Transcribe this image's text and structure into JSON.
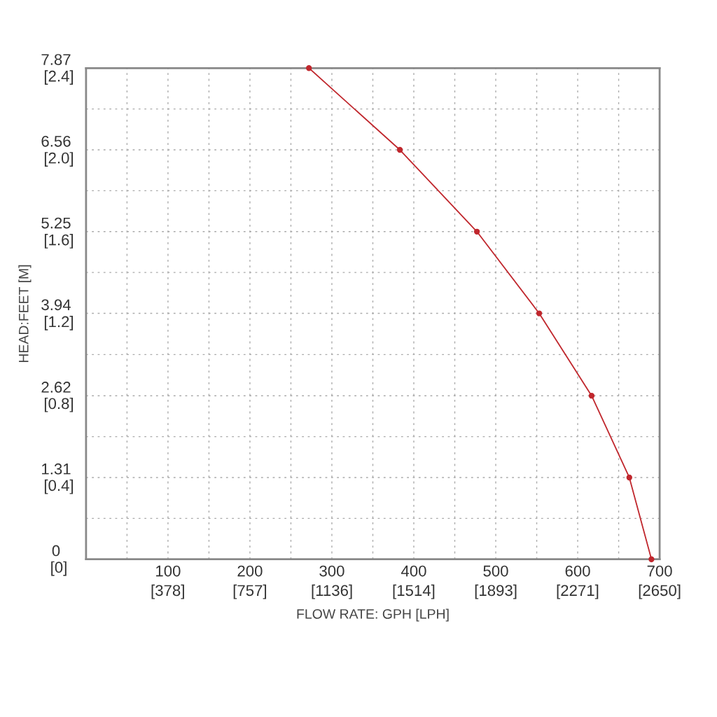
{
  "chart_data": {
    "type": "line",
    "xlabel": "FLOW RATE: GPH [LPH]",
    "ylabel": "HEAD:FEET [M]",
    "series": [
      {
        "color": "#c0272d",
        "x": [
          272,
          383,
          477,
          553,
          617,
          663,
          690
        ],
        "values": [
          7.87,
          6.56,
          5.25,
          3.94,
          2.62,
          1.31,
          0
        ]
      }
    ],
    "xlim": [
      0,
      700
    ],
    "ylim": [
      0,
      7.87
    ],
    "xticks": [
      {
        "value": 0,
        "label": null
      },
      {
        "value": 50,
        "label": null
      },
      100,
      {
        "value": 150,
        "label": null
      },
      200,
      {
        "value": 250,
        "label": null
      },
      300,
      {
        "value": 350,
        "label": null
      },
      400,
      {
        "value": 450,
        "label": null
      },
      500,
      {
        "value": 550,
        "label": null
      },
      600,
      {
        "value": 650,
        "label": null
      },
      700
    ],
    "yticks": [
      0,
      {
        "value": 0.655,
        "label": null
      },
      1.31,
      {
        "value": 1.965,
        "label": null
      },
      2.62,
      {
        "value": 3.28,
        "label": null
      },
      3.94,
      {
        "value": 4.595,
        "label": null
      },
      5.25,
      {
        "value": 5.905,
        "label": null
      },
      6.56,
      {
        "value": 7.215,
        "label": null
      },
      7.87
    ],
    "x2lim": [
      0,
      2650
    ],
    "x2ticks": [
      {
        "value": 378,
        "label": "[378]"
      },
      {
        "value": 757,
        "label": "[757]"
      },
      {
        "value": 1136,
        "label": "[1136]"
      },
      {
        "value": 1514,
        "label": "[1514]"
      },
      {
        "value": 1893,
        "label": "[1893]"
      },
      {
        "value": 2271,
        "label": "[2271]"
      },
      {
        "value": 2650,
        "label": "[2650]"
      }
    ],
    "y2lim": [
      0,
      2.4
    ],
    "y2ticks": [
      {
        "value": 0,
        "label": "[0]"
      },
      {
        "value": 0.4,
        "label": "[0.4]"
      },
      {
        "value": 0.8,
        "label": "[0.8]"
      },
      {
        "value": 1.2,
        "label": "[1.2]"
      },
      {
        "value": 1.6,
        "label": "[1.6]"
      },
      {
        "value": 2.0,
        "label": "[2.0]"
      },
      {
        "value": 2.4,
        "label": "[2.4]"
      }
    ],
    "grid": true,
    "marker": "circle",
    "line_style": "solid",
    "legend": false
  }
}
